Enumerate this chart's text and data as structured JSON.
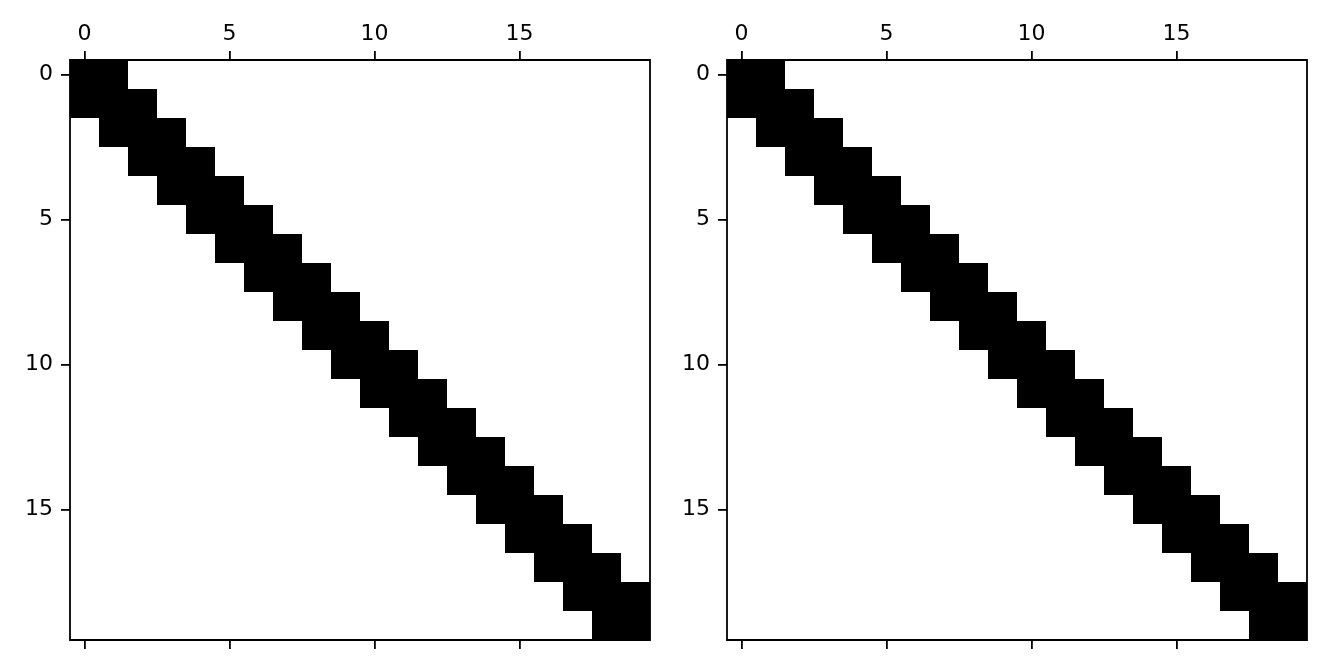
{
  "chart_data": [
    {
      "type": "scatter",
      "color": "#000000",
      "marker": "square",
      "x": [
        0,
        1,
        0,
        1,
        2,
        1,
        2,
        3,
        2,
        3,
        4,
        3,
        4,
        5,
        4,
        5,
        6,
        5,
        6,
        7,
        6,
        7,
        8,
        7,
        8,
        9,
        8,
        9,
        10,
        9,
        10,
        11,
        10,
        11,
        12,
        11,
        12,
        13,
        12,
        13,
        14,
        13,
        14,
        15,
        14,
        15,
        16,
        15,
        16,
        17,
        16,
        17,
        18,
        17,
        18,
        19,
        18,
        19
      ],
      "values": [
        0,
        0,
        1,
        1,
        1,
        2,
        2,
        2,
        3,
        3,
        3,
        4,
        4,
        4,
        5,
        5,
        5,
        6,
        6,
        6,
        7,
        7,
        7,
        8,
        8,
        8,
        9,
        9,
        9,
        10,
        10,
        10,
        11,
        11,
        11,
        12,
        12,
        12,
        13,
        13,
        13,
        14,
        14,
        14,
        15,
        15,
        15,
        16,
        16,
        16,
        17,
        17,
        17,
        18,
        18,
        18,
        19,
        19
      ],
      "xlim": [
        -0.5,
        19.5
      ],
      "ylim": [
        19.5,
        -0.5
      ],
      "xticks": [
        0,
        5,
        10,
        15
      ],
      "yticks": [
        0,
        5,
        10,
        15
      ]
    },
    {
      "type": "scatter",
      "color": "#000000",
      "marker": "square",
      "x": [
        0,
        1,
        0,
        1,
        2,
        1,
        2,
        3,
        2,
        3,
        4,
        3,
        4,
        5,
        4,
        5,
        6,
        5,
        6,
        7,
        6,
        7,
        8,
        7,
        8,
        9,
        8,
        9,
        10,
        9,
        10,
        11,
        10,
        11,
        12,
        11,
        12,
        13,
        12,
        13,
        14,
        13,
        14,
        15,
        14,
        15,
        16,
        15,
        16,
        17,
        16,
        17,
        18,
        17,
        18,
        19,
        18,
        19
      ],
      "values": [
        0,
        0,
        1,
        1,
        1,
        2,
        2,
        2,
        3,
        3,
        3,
        4,
        4,
        4,
        5,
        5,
        5,
        6,
        6,
        6,
        7,
        7,
        7,
        8,
        8,
        8,
        9,
        9,
        9,
        10,
        10,
        10,
        11,
        11,
        11,
        12,
        12,
        12,
        13,
        13,
        13,
        14,
        14,
        14,
        15,
        15,
        15,
        16,
        16,
        16,
        17,
        17,
        17,
        18,
        18,
        18,
        19,
        19
      ],
      "xlim": [
        -0.5,
        19.5
      ],
      "ylim": [
        19.5,
        -0.5
      ],
      "xticks": [
        0,
        5,
        10,
        15
      ],
      "yticks": [
        0,
        5,
        10,
        15
      ]
    }
  ]
}
